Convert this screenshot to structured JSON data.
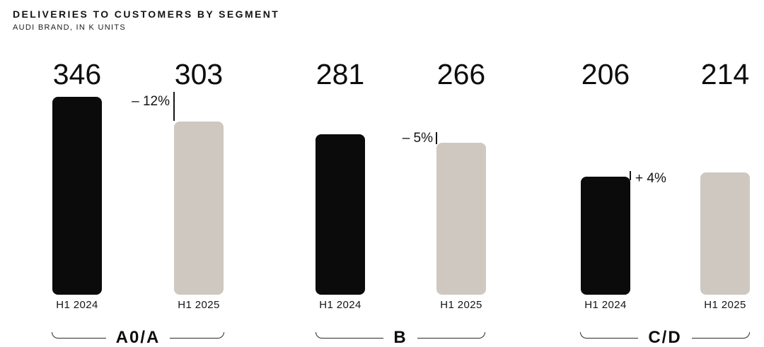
{
  "header": {
    "title": "DELIVERIES TO CUSTOMERS BY SEGMENT",
    "subtitle": "AUDI BRAND, IN K UNITS"
  },
  "chart_data": {
    "type": "bar",
    "title": "DELIVERIES TO CUSTOMERS BY SEGMENT",
    "subtitle": "AUDI BRAND, IN K UNITS",
    "value_unit": "k units",
    "series_labels": [
      "H1 2024",
      "H1 2025"
    ],
    "ylim": [
      0,
      346
    ],
    "grid": false,
    "legend": "none",
    "colors": {
      "h1_2024_bar": "#0b0b0b",
      "h1_2025_bar": "#cec8c1",
      "text": "#141414"
    },
    "groups": [
      {
        "segment": "A0/A",
        "change_label": "– 12%",
        "change_direction": "down",
        "bars": [
          {
            "label": "H1 2024",
            "value": 346
          },
          {
            "label": "H1 2025",
            "value": 303
          }
        ]
      },
      {
        "segment": "B",
        "change_label": "– 5%",
        "change_direction": "down",
        "bars": [
          {
            "label": "H1 2024",
            "value": 281
          },
          {
            "label": "H1 2025",
            "value": 266
          }
        ]
      },
      {
        "segment": "C/D",
        "change_label": "+ 4%",
        "change_direction": "up",
        "bars": [
          {
            "label": "H1 2024",
            "value": 206
          },
          {
            "label": "H1 2025",
            "value": 214
          }
        ]
      }
    ]
  }
}
